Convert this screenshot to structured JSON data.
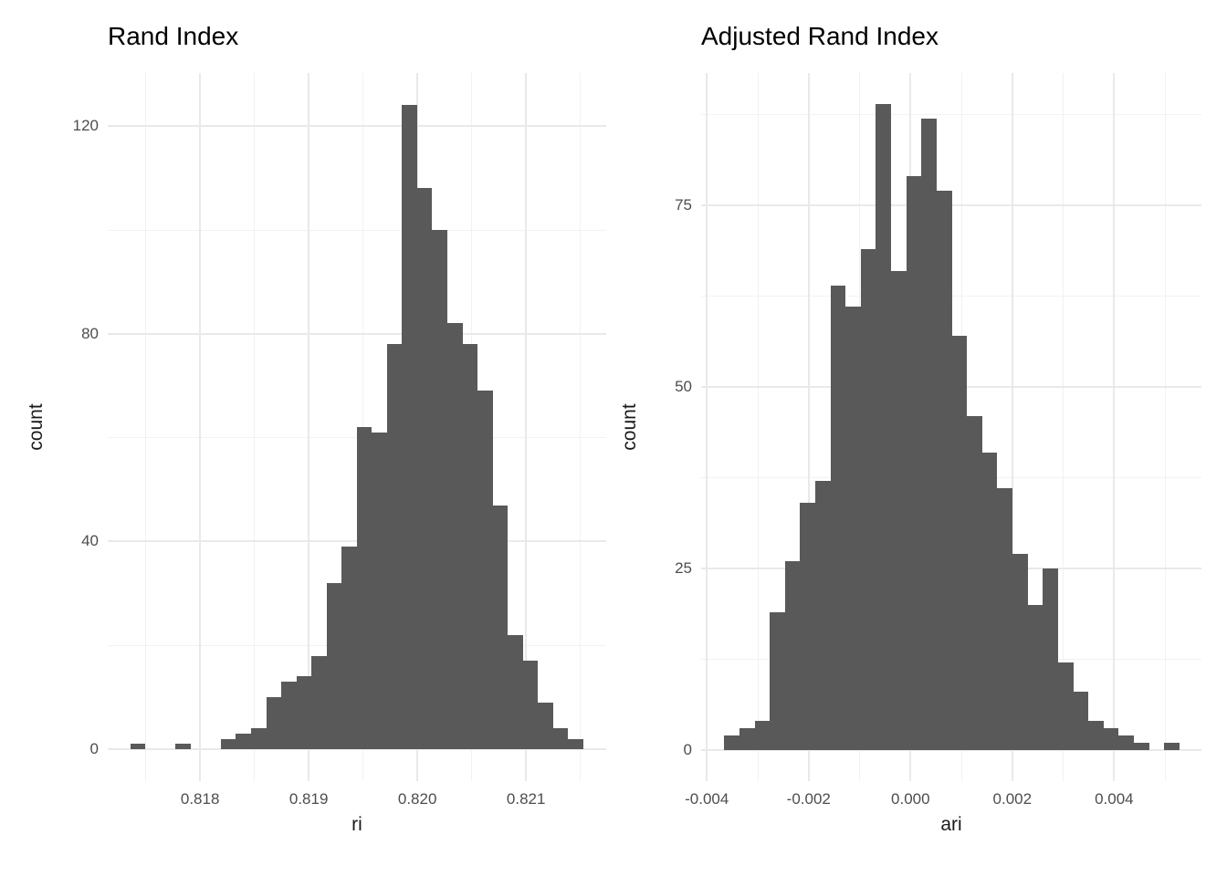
{
  "figure": {
    "background": "#ffffff",
    "description": "Two side-by-side ggplot-style histograms of clustering agreement statistics"
  },
  "colors": {
    "bar_fill": "#595959",
    "grid_major": "#e9e9e9",
    "grid_minor": "#f2f2f2",
    "title_text": "#000000",
    "axis_title_text": "#1a1a1a",
    "tick_text": "#4d4d4d",
    "panel_background": "#ffffff"
  },
  "chart_data": [
    {
      "type": "bar",
      "geom": "histogram",
      "title": "Rand Index",
      "xlabel": "ri",
      "ylabel": "count",
      "x_ticks": [
        0.818,
        0.819,
        0.82,
        0.821
      ],
      "x_tick_labels": [
        "0.818",
        "0.819",
        "0.820",
        "0.821"
      ],
      "x_minor_ticks": [
        0.8175,
        0.8185,
        0.8195,
        0.8205,
        0.8215
      ],
      "y_ticks": [
        0,
        40,
        80,
        120
      ],
      "y_tick_labels": [
        "0",
        "40",
        "80",
        "120"
      ],
      "y_minor_ticks": [
        20,
        60,
        100
      ],
      "xlim": [
        0.81715,
        0.821738
      ],
      "ylim": [
        -6.15,
        130.23
      ],
      "grid": true,
      "legend": false,
      "bins": {
        "start": 0.817357,
        "binwidth": 0.000139,
        "counts": [
          1,
          0,
          0,
          1,
          0,
          0,
          2,
          3,
          4,
          10,
          13,
          14,
          18,
          32,
          39,
          62,
          61,
          78,
          124,
          108,
          100,
          82,
          78,
          69,
          47,
          22,
          17,
          9,
          4,
          2
        ]
      },
      "peak_count": 124,
      "total_count": 1000
    },
    {
      "type": "bar",
      "geom": "histogram",
      "title": "Adjusted Rand Index",
      "xlabel": "ari",
      "ylabel": "count",
      "x_ticks": [
        -0.004,
        -0.002,
        0,
        0.002,
        0.004
      ],
      "x_tick_labels": [
        "-0.004",
        "-0.002",
        "0.000",
        "0.002",
        "0.004"
      ],
      "x_minor_ticks": [
        -0.003,
        -0.001,
        0.001,
        0.003,
        0.005
      ],
      "y_ticks": [
        0,
        25,
        50,
        75
      ],
      "y_tick_labels": [
        "0",
        "25",
        "50",
        "75"
      ],
      "y_minor_ticks": [
        12.5,
        37.5,
        62.5,
        87.5
      ],
      "xlim": [
        -0.004112,
        0.005715
      ],
      "ylim": [
        -4.27,
        93.22
      ],
      "grid": true,
      "legend": false,
      "bins": {
        "start": -0.003658,
        "binwidth": 0.000298,
        "counts": [
          2,
          3,
          4,
          19,
          26,
          34,
          37,
          64,
          61,
          69,
          89,
          66,
          79,
          87,
          77,
          57,
          46,
          41,
          36,
          27,
          20,
          25,
          12,
          8,
          4,
          3,
          2,
          1,
          0,
          1
        ]
      },
      "peak_count": 89,
      "total_count": 1000
    }
  ]
}
